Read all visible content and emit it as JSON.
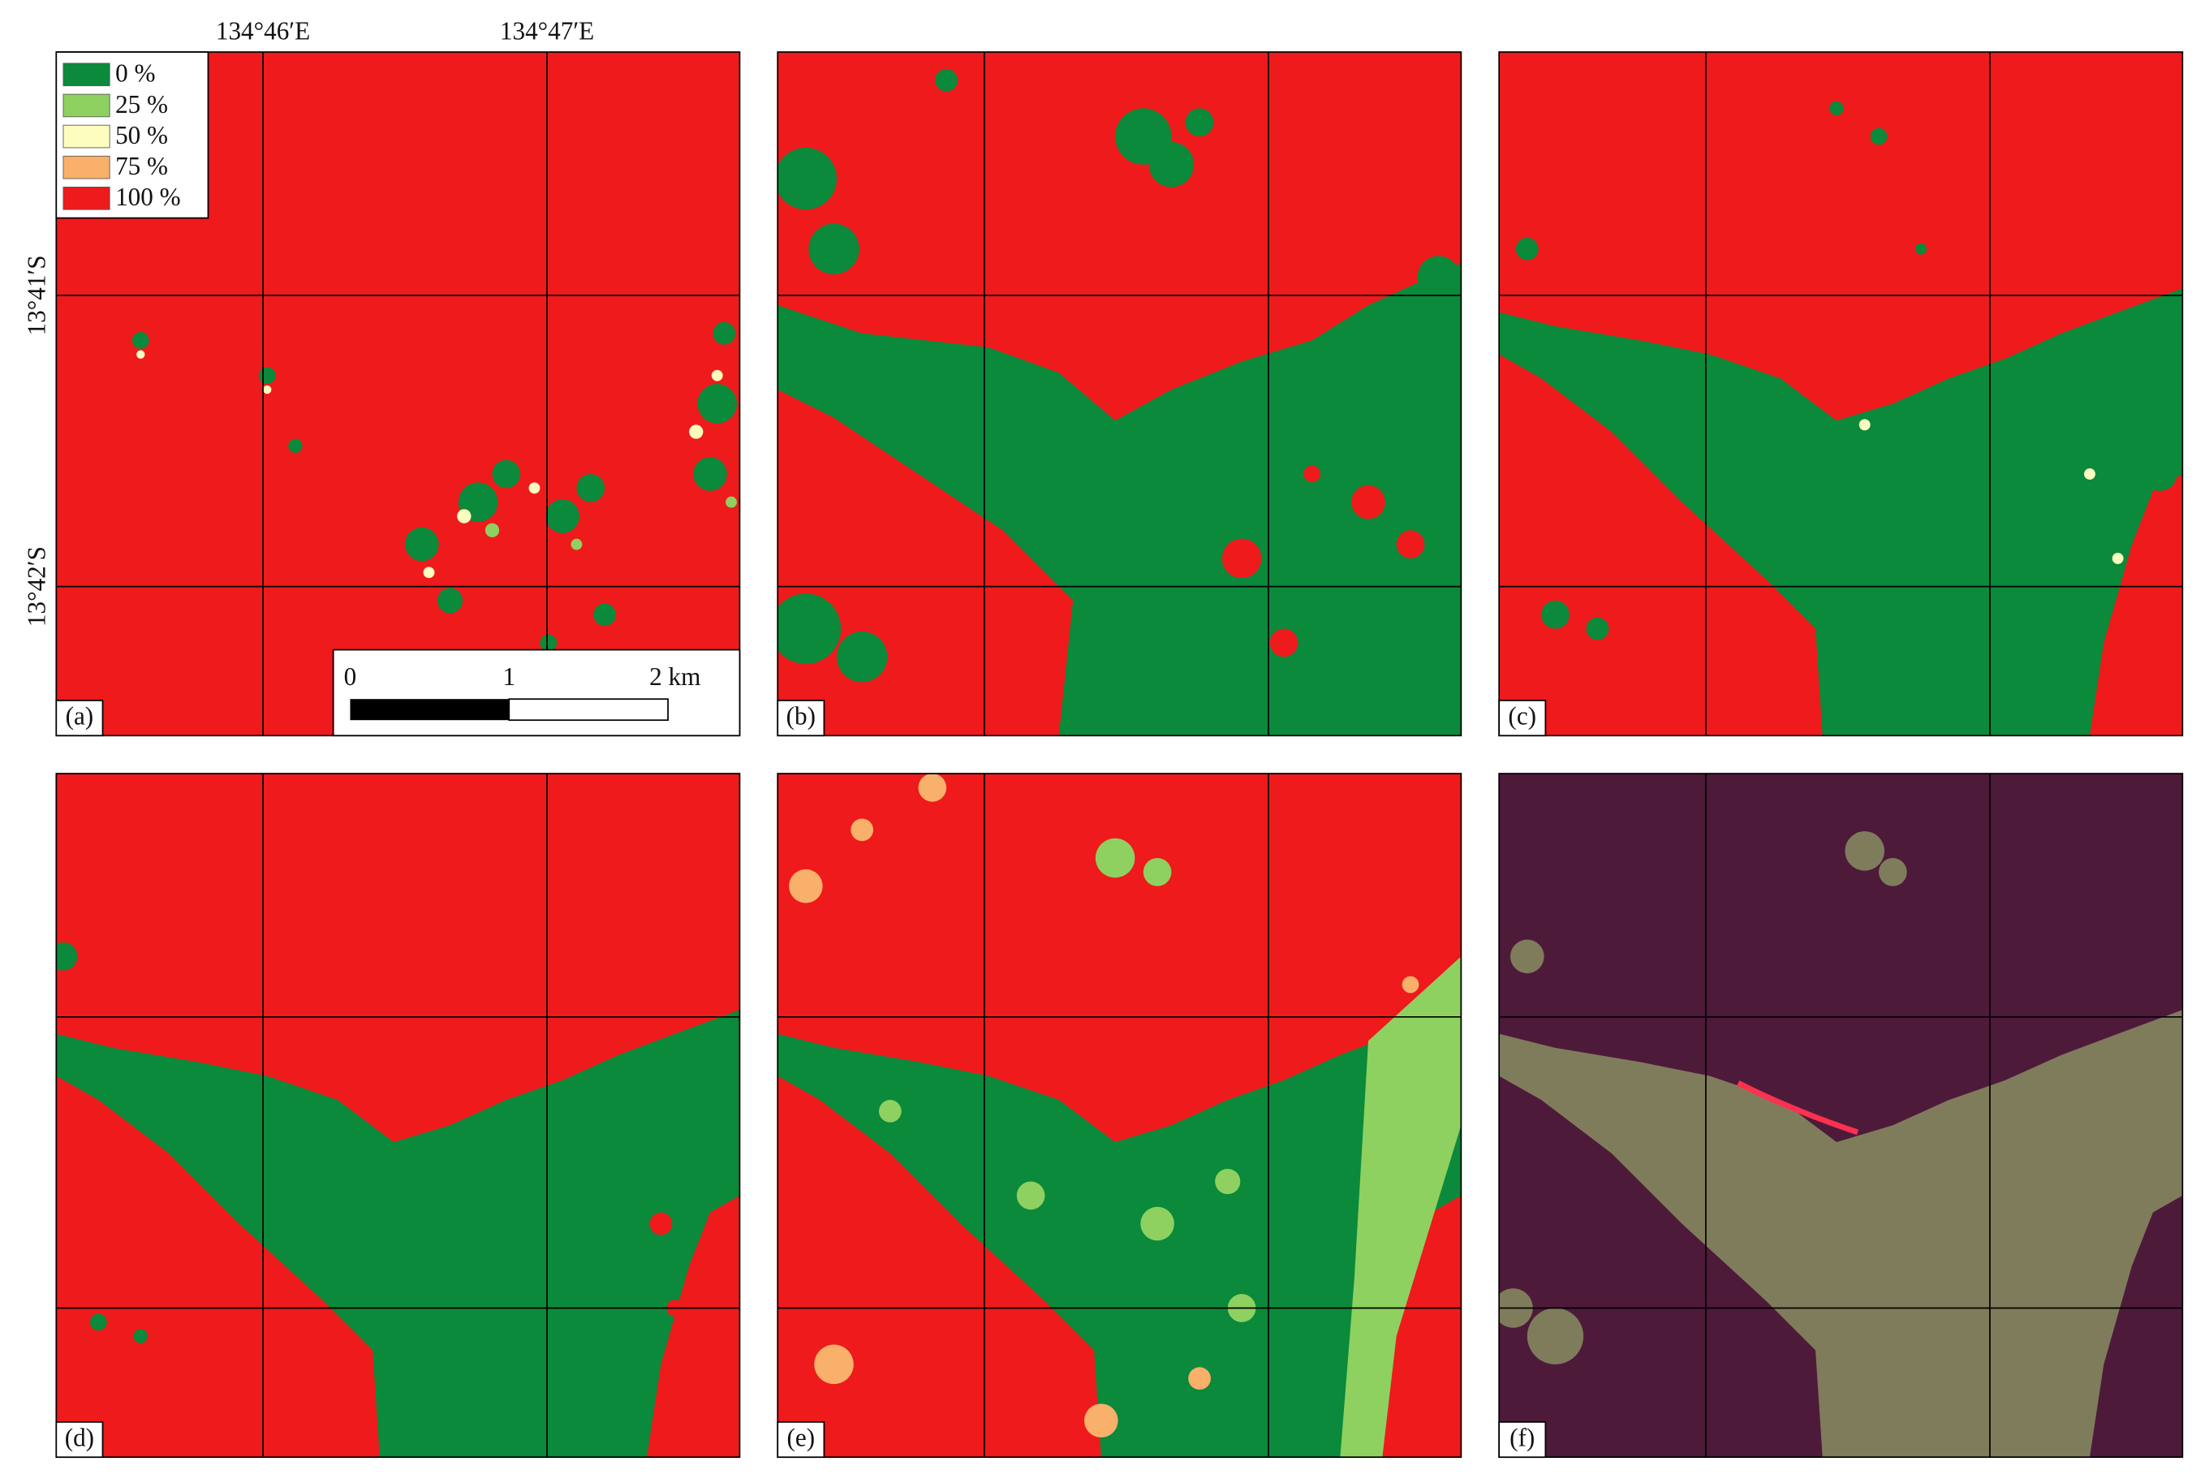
{
  "axes": {
    "longitude_labels": [
      "134°46′E",
      "134°47′E"
    ],
    "latitude_labels": [
      "13°41′S",
      "13°42′S"
    ]
  },
  "legend": {
    "items": [
      {
        "label": "0 %",
        "color": "#0a8a3a"
      },
      {
        "label": "25 %",
        "color": "#8ed160"
      },
      {
        "label": "50 %",
        "color": "#fdfdc0"
      },
      {
        "label": "75 %",
        "color": "#f9b06a"
      },
      {
        "label": "100 %",
        "color": "#ee1a1c"
      }
    ]
  },
  "scale_bar": {
    "labels": [
      "0",
      "1",
      "2 km"
    ]
  },
  "panels": [
    {
      "label": "(a)"
    },
    {
      "label": "(b)"
    },
    {
      "label": "(c)"
    },
    {
      "label": "(d)"
    },
    {
      "label": "(e)"
    },
    {
      "label": "(f)"
    }
  ]
}
